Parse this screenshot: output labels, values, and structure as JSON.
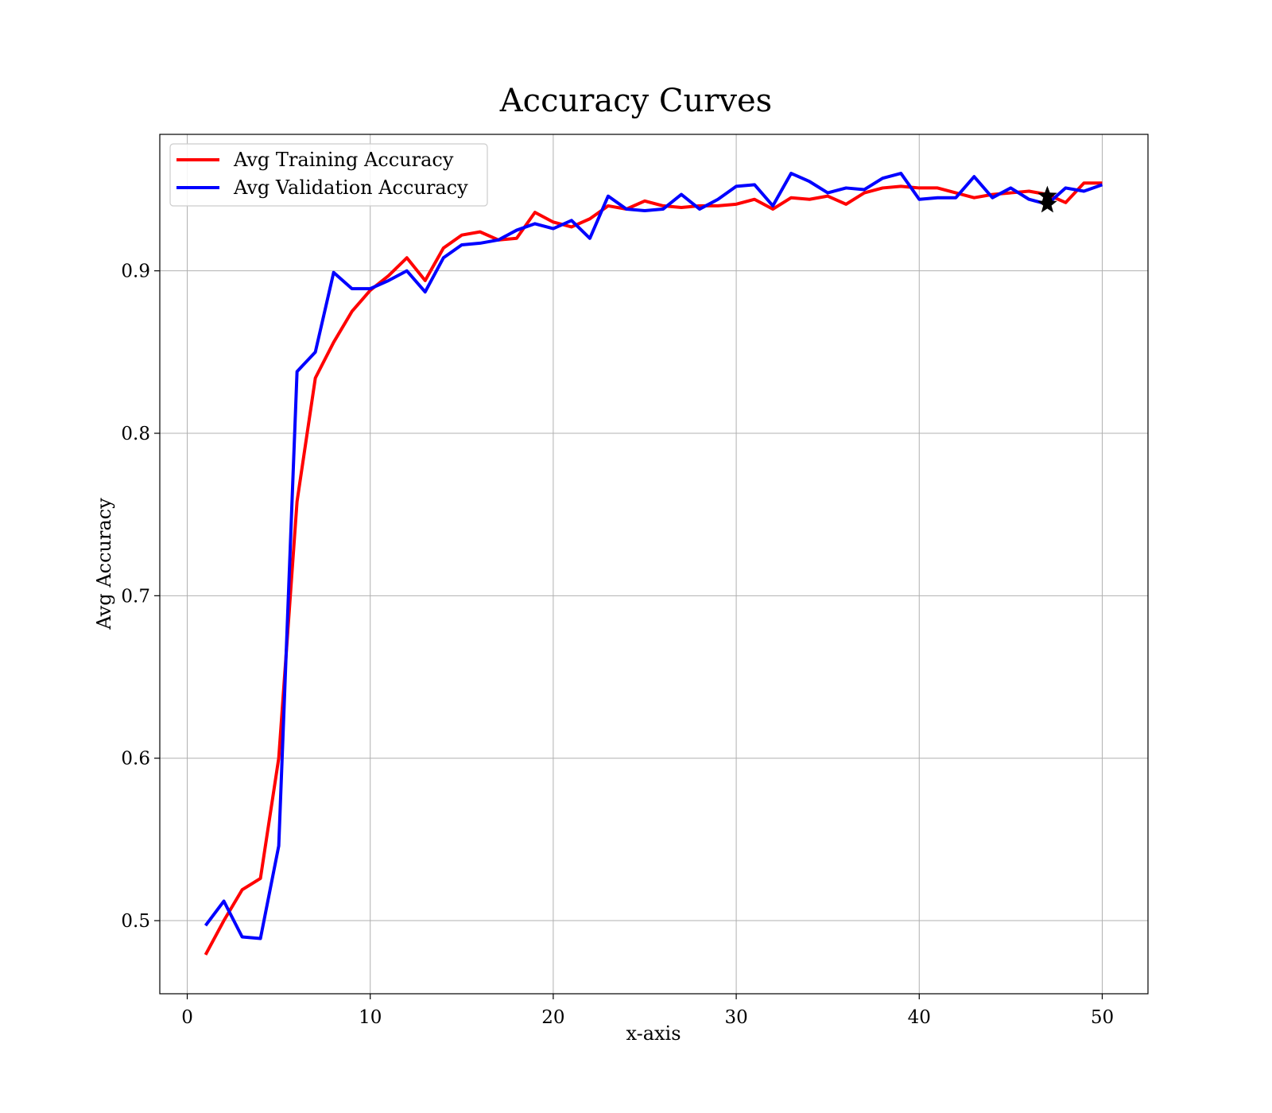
{
  "chart_data": {
    "type": "line",
    "title": "Accuracy Curves",
    "xlabel": "x-axis",
    "ylabel": "Avg Accuracy",
    "xlim": [
      -1.5,
      52.5
    ],
    "ylim": [
      0.455,
      0.984
    ],
    "xticks": [
      0,
      10,
      20,
      30,
      40,
      50
    ],
    "yticks": [
      0.5,
      0.6,
      0.7,
      0.8,
      0.9
    ],
    "grid": true,
    "legend_position": "upper-left",
    "x": [
      1,
      2,
      3,
      4,
      5,
      6,
      7,
      8,
      9,
      10,
      11,
      12,
      13,
      14,
      15,
      16,
      17,
      18,
      19,
      20,
      21,
      22,
      23,
      24,
      25,
      26,
      27,
      28,
      29,
      30,
      31,
      32,
      33,
      34,
      35,
      36,
      37,
      38,
      39,
      40,
      41,
      42,
      43,
      44,
      45,
      46,
      47,
      48,
      49,
      50
    ],
    "series": [
      {
        "name": "Avg Training Accuracy",
        "color": "#ff0000",
        "values": [
          0.479,
          0.5,
          0.519,
          0.526,
          0.6,
          0.758,
          0.834,
          0.856,
          0.875,
          0.888,
          0.897,
          0.908,
          0.894,
          0.914,
          0.922,
          0.924,
          0.919,
          0.92,
          0.936,
          0.93,
          0.927,
          0.932,
          0.94,
          0.938,
          0.943,
          0.94,
          0.939,
          0.94,
          0.94,
          0.941,
          0.944,
          0.938,
          0.945,
          0.944,
          0.946,
          0.941,
          0.948,
          0.951,
          0.952,
          0.951,
          0.951,
          0.948,
          0.945,
          0.947,
          0.948,
          0.949,
          0.947,
          0.942,
          0.954,
          0.954
        ]
      },
      {
        "name": "Avg Validation Accuracy",
        "color": "#0000ff",
        "values": [
          0.497,
          0.512,
          0.49,
          0.489,
          0.546,
          0.838,
          0.85,
          0.899,
          0.889,
          0.889,
          0.894,
          0.9,
          0.887,
          0.908,
          0.916,
          0.917,
          0.919,
          0.925,
          0.929,
          0.926,
          0.931,
          0.92,
          0.946,
          0.938,
          0.937,
          0.938,
          0.947,
          0.938,
          0.944,
          0.952,
          0.953,
          0.94,
          0.96,
          0.955,
          0.948,
          0.951,
          0.95,
          0.957,
          0.96,
          0.944,
          0.945,
          0.945,
          0.958,
          0.945,
          0.951,
          0.944,
          0.941,
          0.951,
          0.949,
          0.953
        ]
      }
    ],
    "markers": [
      {
        "x": 47,
        "y": 0.946,
        "shape": "star",
        "color": "#000000"
      },
      {
        "x": 47,
        "y": 0.941,
        "shape": "star",
        "color": "#000000"
      }
    ]
  }
}
